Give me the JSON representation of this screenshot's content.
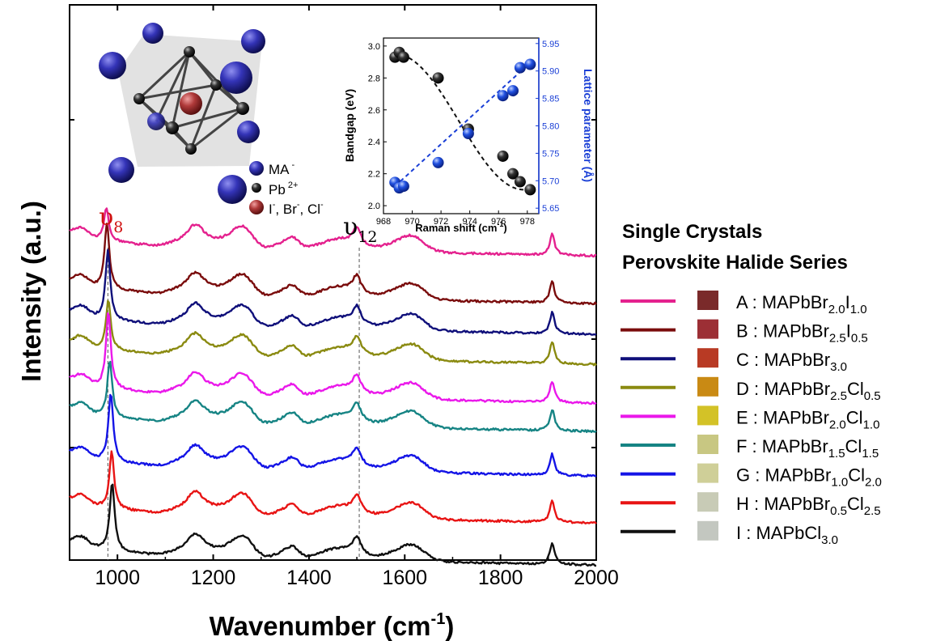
{
  "chart_data": [
    {
      "type": "line",
      "xlabel": "Wavenumber (cm",
      "xlabel_sup": "-1",
      "xlabel_end": ")",
      "ylabel": "Intensity (a.u.)",
      "xlim": [
        900,
        2000
      ],
      "xticks": [
        1000,
        1200,
        1400,
        1600,
        1800,
        2000
      ],
      "y_tick_labels": "none",
      "grid": false,
      "peak_labels": [
        {
          "symbol": "υ",
          "sub": "8",
          "x": 980,
          "color": "#d01010"
        },
        {
          "symbol": "υ",
          "sub": "12",
          "x": 1500,
          "color": "#000000"
        }
      ],
      "reference_lines_x": [
        980,
        1505
      ],
      "note": "stacked Raman spectra, vertically offset, top to bottom A to I",
      "peak_positions": {
        "v8_by_series": [
          977,
          978,
          980,
          981,
          981,
          984,
          986,
          988,
          989
        ],
        "common_peaks": [
          1160,
          1260,
          1365,
          1500,
          1615,
          1908
        ]
      },
      "legend_title": [
        "Single Crystals",
        "Perovskite Halide Series"
      ],
      "series": [
        {
          "id": "A",
          "color": "#e4218e",
          "formula": [
            [
              "A : MAPbBr",
              ""
            ],
            [
              "2.0",
              "sub"
            ],
            [
              "I",
              ""
            ],
            [
              "1.0",
              "sub"
            ]
          ],
          "swatch": "#7a2a2a",
          "v8": 977
        },
        {
          "id": "B",
          "color": "#7a0c0c",
          "formula": [
            [
              "B : MAPbBr",
              ""
            ],
            [
              "2.5",
              "sub"
            ],
            [
              "I",
              ""
            ],
            [
              "0.5",
              "sub"
            ]
          ],
          "swatch": "#9c2f35",
          "v8": 978
        },
        {
          "id": "C",
          "color": "#0f0f7a",
          "formula": [
            [
              "C : MAPbBr",
              ""
            ],
            [
              "3.0",
              "sub"
            ]
          ],
          "swatch": "#b83a24",
          "v8": 980
        },
        {
          "id": "D",
          "color": "#8a8a10",
          "formula": [
            [
              "D : MAPbBr",
              ""
            ],
            [
              "2.5",
              "sub"
            ],
            [
              "Cl",
              ""
            ],
            [
              "0.5",
              "sub"
            ]
          ],
          "swatch": "#c98a14",
          "v8": 981
        },
        {
          "id": "E",
          "color": "#ea18ea",
          "formula": [
            [
              "E : MAPbBr",
              ""
            ],
            [
              "2.0",
              "sub"
            ],
            [
              "Cl",
              ""
            ],
            [
              "1.0",
              "sub"
            ]
          ],
          "swatch": "#d3c227",
          "v8": 981
        },
        {
          "id": "F",
          "color": "#168484",
          "formula": [
            [
              "F : MAPbBr",
              ""
            ],
            [
              "1.5",
              "sub"
            ],
            [
              "Cl",
              ""
            ],
            [
              "1.5",
              "sub"
            ]
          ],
          "swatch": "#c8c782",
          "v8": 984
        },
        {
          "id": "G",
          "color": "#1414e6",
          "formula": [
            [
              "G : MAPbBr",
              ""
            ],
            [
              "1.0",
              "sub"
            ],
            [
              "Cl",
              ""
            ],
            [
              "2.0",
              "sub"
            ]
          ],
          "swatch": "#cfcf98",
          "v8": 986
        },
        {
          "id": "H",
          "color": "#e81414",
          "formula": [
            [
              "H : MAPbBr",
              ""
            ],
            [
              "0.5",
              "sub"
            ],
            [
              "Cl",
              ""
            ],
            [
              "2.5",
              "sub"
            ]
          ],
          "swatch": "#c8cbb6",
          "v8": 988
        },
        {
          "id": "I",
          "color": "#101010",
          "formula": [
            [
              "I : MAPbCl",
              ""
            ],
            [
              "3.0",
              "sub"
            ]
          ],
          "swatch": "#c3c7c0",
          "v8": 989
        }
      ]
    },
    {
      "type": "scatter",
      "xlabel": "Raman shift (cm",
      "xlabel_sup": "-1",
      "xlabel_end": ")",
      "ylabel_left": "Bandgap (eV)",
      "ylabel_right": "Lattice parameter (Å)",
      "xlim": [
        968,
        978.8
      ],
      "xticks": [
        968,
        970,
        972,
        974,
        976,
        978
      ],
      "ylim_left": [
        1.95,
        3.05
      ],
      "yticks_left": [
        "2.0",
        "2.2",
        "2.4",
        "2.6",
        "2.8",
        "3.0"
      ],
      "ylim_right": [
        5.64,
        5.96
      ],
      "yticks_right": [
        "5.65",
        "5.70",
        "5.75",
        "5.80",
        "5.85",
        "5.90",
        "5.95"
      ],
      "series": [
        {
          "name": "Bandgap",
          "axis": "left",
          "color": "#111111",
          "x": [
            968.8,
            969.1,
            969.4,
            971.8,
            973.9,
            976.3,
            977.0,
            977.5,
            978.2
          ],
          "y": [
            2.93,
            2.96,
            2.93,
            2.8,
            2.48,
            2.31,
            2.2,
            2.15,
            2.1
          ]
        },
        {
          "name": "Lattice parameter",
          "axis": "right",
          "color": "#1a3fd6",
          "x": [
            968.8,
            969.1,
            969.4,
            971.8,
            973.9,
            976.3,
            977.0,
            977.5,
            978.2
          ],
          "y": [
            5.697,
            5.687,
            5.69,
            5.733,
            5.786,
            5.855,
            5.864,
            5.906,
            5.912
          ]
        }
      ]
    }
  ],
  "structure_legend": [
    {
      "label": "MA",
      "sup": " -",
      "color": "#2c2ca8"
    },
    {
      "label": "Pb",
      "sup": " 2+",
      "color": "#111111"
    },
    {
      "label": "I",
      "sup": "-",
      "rest": ", Br",
      "sup2": "-",
      "rest2": ", Cl",
      "sup3": "-",
      "color": "#b03a3a"
    }
  ]
}
